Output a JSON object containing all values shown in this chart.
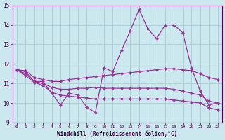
{
  "xlabel": "Windchill (Refroidissement éolien,°C)",
  "bg_color": "#cce8ef",
  "grid_color": "#aacdd8",
  "line_color": "#993399",
  "ylim": [
    9,
    15
  ],
  "xlim": [
    -0.5,
    23.5
  ],
  "curve1_x": [
    0,
    1,
    2,
    3,
    4,
    5,
    6,
    7,
    8,
    9,
    10,
    11,
    12,
    13,
    14,
    15,
    16,
    17,
    18,
    19,
    20,
    21,
    22,
    23
  ],
  "curve1_y": [
    11.7,
    11.6,
    11.1,
    11.1,
    10.5,
    9.9,
    10.5,
    10.4,
    9.8,
    9.5,
    11.8,
    11.6,
    12.7,
    13.7,
    14.8,
    13.8,
    13.3,
    14.0,
    14.0,
    13.6,
    11.8,
    10.6,
    9.9,
    10.0
  ],
  "curve2_x": [
    0,
    1,
    2,
    3,
    4,
    5,
    6,
    7,
    8,
    9,
    10,
    11,
    12,
    13,
    14,
    15,
    16,
    17,
    18,
    19,
    20,
    21,
    22,
    23
  ],
  "curve2_y": [
    11.7,
    11.65,
    11.3,
    11.2,
    11.1,
    11.1,
    11.2,
    11.25,
    11.3,
    11.35,
    11.4,
    11.45,
    11.5,
    11.55,
    11.6,
    11.65,
    11.7,
    11.75,
    11.75,
    11.7,
    11.65,
    11.5,
    11.3,
    11.2
  ],
  "curve3_x": [
    0,
    1,
    2,
    3,
    4,
    5,
    6,
    7,
    8,
    9,
    10,
    11,
    12,
    13,
    14,
    15,
    16,
    17,
    18,
    19,
    20,
    21,
    22,
    23
  ],
  "curve3_y": [
    11.7,
    11.5,
    11.1,
    11.0,
    10.8,
    10.7,
    10.7,
    10.75,
    10.75,
    10.8,
    10.75,
    10.75,
    10.75,
    10.75,
    10.75,
    10.75,
    10.75,
    10.75,
    10.7,
    10.6,
    10.5,
    10.4,
    10.1,
    10.0
  ],
  "curve4_x": [
    0,
    1,
    2,
    3,
    4,
    5,
    6,
    7,
    8,
    9,
    10,
    11,
    12,
    13,
    14,
    15,
    16,
    17,
    18,
    19,
    20,
    21,
    22,
    23
  ],
  "curve4_y": [
    11.7,
    11.4,
    11.05,
    10.9,
    10.55,
    10.4,
    10.35,
    10.3,
    10.25,
    10.2,
    10.2,
    10.2,
    10.2,
    10.2,
    10.2,
    10.2,
    10.2,
    10.2,
    10.15,
    10.1,
    10.05,
    10.0,
    9.75,
    9.65
  ]
}
